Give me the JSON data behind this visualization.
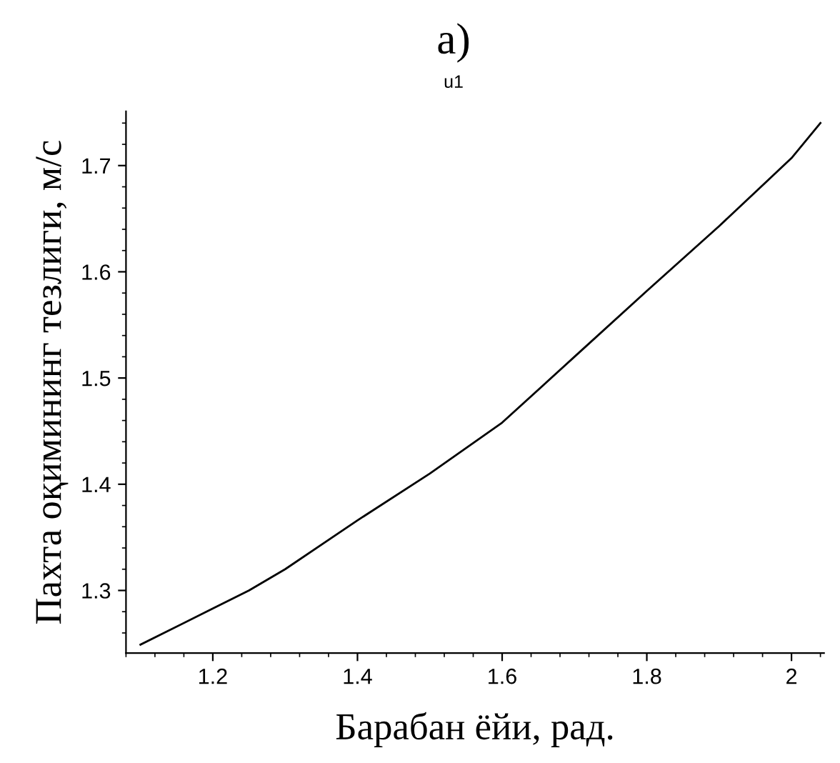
{
  "chart_data": {
    "type": "line",
    "title": "а)",
    "subtitle": "u1",
    "xlabel": "Барабан ёйи, рад.",
    "ylabel": "Пахта оқимининг тезлиги, м/с",
    "series": [
      {
        "color": "#000000",
        "x": [
          1.1,
          1.2,
          1.25,
          1.3,
          1.4,
          1.5,
          1.6,
          1.7,
          1.8,
          1.9,
          2.0,
          2.04
        ],
        "values": [
          1.249,
          1.283,
          1.3,
          1.32,
          1.366,
          1.41,
          1.458,
          1.52,
          1.582,
          1.643,
          1.707,
          1.74
        ]
      }
    ],
    "xlim": [
      1.08,
      2.045
    ],
    "ylim": [
      1.241,
      1.751
    ],
    "xticks": [
      1.2,
      1.4,
      1.6,
      1.8,
      {
        "value": 2.0,
        "label": "2"
      }
    ],
    "yticks": [
      1.3,
      1.4,
      1.5,
      1.6,
      1.7
    ],
    "grid": false,
    "legend": false,
    "marker": "none",
    "line_style": "solid"
  }
}
